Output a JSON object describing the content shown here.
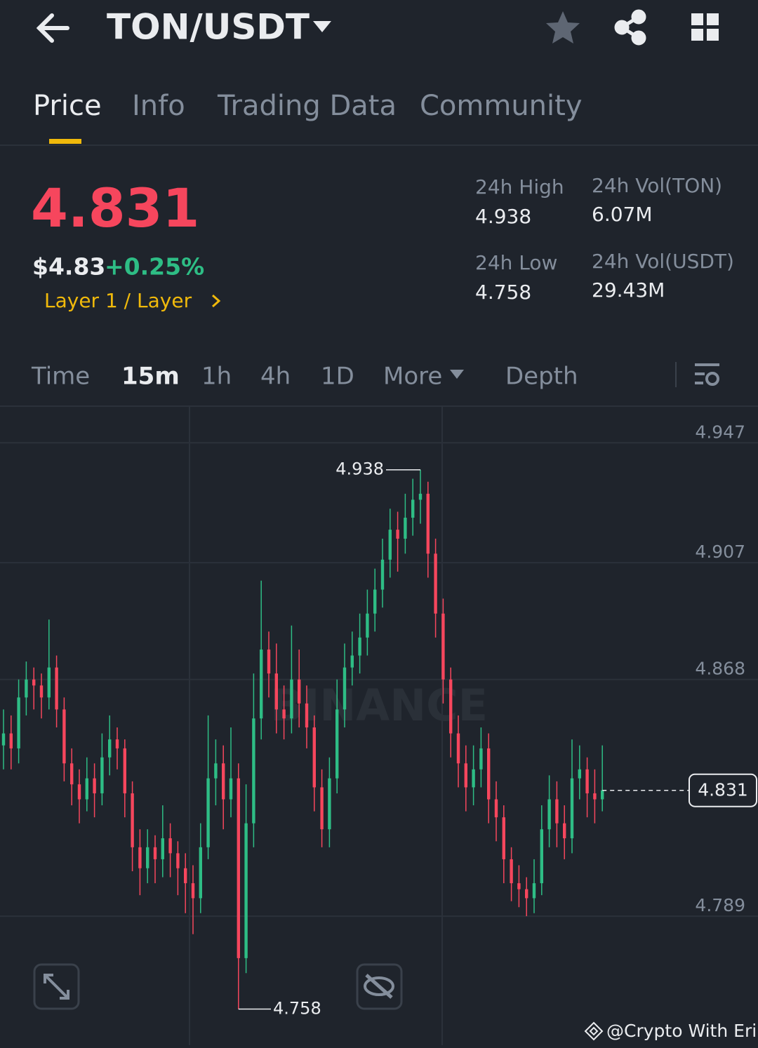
{
  "header": {
    "pair": "TON/USDT"
  },
  "tabs": [
    "Price",
    "Info",
    "Trading Data",
    "Community"
  ],
  "price": {
    "last": "4.831",
    "usd": "$4.83",
    "change": "+0.25%",
    "category": "Layer 1 / Layer"
  },
  "stats": [
    {
      "label": "24h High",
      "value": "4.938"
    },
    {
      "label": "24h Vol(TON)",
      "value": "6.07M"
    },
    {
      "label": "24h Low",
      "value": "4.758"
    },
    {
      "label": "24h Vol(USDT)",
      "value": "29.43M"
    }
  ],
  "intervals": [
    "Time",
    "15m",
    "1h",
    "4h",
    "1D",
    "More",
    "Depth"
  ],
  "chart": {
    "type": "candlestick",
    "watermark": "BINANCE",
    "ylim": [
      4.745,
      4.959
    ],
    "yticks": [
      4.947,
      4.907,
      4.868,
      4.789
    ],
    "up_color": "#2ebd85",
    "down_color": "#f6465d",
    "high_marker": 4.938,
    "low_marker": 4.758,
    "last_price": 4.831,
    "candles": [
      [
        4.846,
        4.858,
        4.838,
        4.85
      ],
      [
        4.85,
        4.856,
        4.838,
        4.845
      ],
      [
        4.845,
        4.868,
        4.84,
        4.862
      ],
      [
        4.862,
        4.874,
        4.856,
        4.868
      ],
      [
        4.868,
        4.872,
        4.858,
        4.866
      ],
      [
        4.866,
        4.87,
        4.855,
        4.862
      ],
      [
        4.862,
        4.888,
        4.858,
        4.872
      ],
      [
        4.872,
        4.876,
        4.852,
        4.858
      ],
      [
        4.858,
        4.862,
        4.834,
        4.84
      ],
      [
        4.84,
        4.845,
        4.826,
        4.833
      ],
      [
        4.833,
        4.838,
        4.82,
        4.828
      ],
      [
        4.828,
        4.842,
        4.824,
        4.835
      ],
      [
        4.835,
        4.84,
        4.822,
        4.83
      ],
      [
        4.83,
        4.85,
        4.826,
        4.842
      ],
      [
        4.842,
        4.856,
        4.836,
        4.848
      ],
      [
        4.848,
        4.852,
        4.838,
        4.845
      ],
      [
        4.845,
        4.848,
        4.822,
        4.83
      ],
      [
        4.83,
        4.834,
        4.804,
        4.812
      ],
      [
        4.812,
        4.818,
        4.796,
        4.805
      ],
      [
        4.805,
        4.818,
        4.8,
        4.812
      ],
      [
        4.812,
        4.816,
        4.8,
        4.808
      ],
      [
        4.808,
        4.826,
        4.802,
        4.815
      ],
      [
        4.815,
        4.82,
        4.802,
        4.81
      ],
      [
        4.81,
        4.814,
        4.796,
        4.805
      ],
      [
        4.805,
        4.81,
        4.79,
        4.8
      ],
      [
        4.8,
        4.806,
        4.783,
        4.795
      ],
      [
        4.795,
        4.82,
        4.79,
        4.812
      ],
      [
        4.812,
        4.856,
        4.808,
        4.835
      ],
      [
        4.835,
        4.848,
        4.826,
        4.84
      ],
      [
        4.84,
        4.846,
        4.818,
        4.828
      ],
      [
        4.828,
        4.852,
        4.822,
        4.835
      ],
      [
        4.835,
        4.84,
        4.758,
        4.775
      ],
      [
        4.775,
        4.833,
        4.77,
        4.82
      ],
      [
        4.82,
        4.87,
        4.812,
        4.855
      ],
      [
        4.855,
        4.901,
        4.848,
        4.878
      ],
      [
        4.878,
        4.884,
        4.862,
        4.87
      ],
      [
        4.87,
        4.88,
        4.85,
        4.858
      ],
      [
        4.858,
        4.866,
        4.848,
        4.855
      ],
      [
        4.855,
        4.886,
        4.85,
        4.868
      ],
      [
        4.868,
        4.878,
        4.852,
        4.86
      ],
      [
        4.86,
        4.866,
        4.845,
        4.852
      ],
      [
        4.852,
        4.856,
        4.824,
        4.832
      ],
      [
        4.832,
        4.838,
        4.812,
        4.818
      ],
      [
        4.818,
        4.842,
        4.812,
        4.835
      ],
      [
        4.835,
        4.868,
        4.83,
        4.858
      ],
      [
        4.858,
        4.88,
        4.852,
        4.872
      ],
      [
        4.872,
        4.884,
        4.866,
        4.876
      ],
      [
        4.876,
        4.89,
        4.87,
        4.882
      ],
      [
        4.882,
        4.898,
        4.876,
        4.89
      ],
      [
        4.89,
        4.905,
        4.884,
        4.898
      ],
      [
        4.898,
        4.915,
        4.892,
        4.908
      ],
      [
        4.908,
        4.925,
        4.902,
        4.918
      ],
      [
        4.918,
        4.924,
        4.904,
        4.915
      ],
      [
        4.915,
        4.93,
        4.91,
        4.922
      ],
      [
        4.922,
        4.935,
        4.916,
        4.928
      ],
      [
        4.928,
        4.938,
        4.92,
        4.93
      ],
      [
        4.93,
        4.934,
        4.902,
        4.91
      ],
      [
        4.91,
        4.915,
        4.882,
        4.89
      ],
      [
        4.89,
        4.895,
        4.86,
        4.868
      ],
      [
        4.868,
        4.872,
        4.842,
        4.85
      ],
      [
        4.85,
        4.856,
        4.832,
        4.84
      ],
      [
        4.84,
        4.846,
        4.824,
        4.832
      ],
      [
        4.832,
        4.846,
        4.826,
        4.838
      ],
      [
        4.838,
        4.852,
        4.832,
        4.845
      ],
      [
        4.845,
        4.85,
        4.82,
        4.828
      ],
      [
        4.828,
        4.834,
        4.814,
        4.822
      ],
      [
        4.822,
        4.826,
        4.8,
        4.808
      ],
      [
        4.808,
        4.812,
        4.794,
        4.8
      ],
      [
        4.8,
        4.806,
        4.792,
        4.798
      ],
      [
        4.798,
        4.802,
        4.789,
        4.795
      ],
      [
        4.795,
        4.808,
        4.79,
        4.8
      ],
      [
        4.8,
        4.826,
        4.796,
        4.818
      ],
      [
        4.818,
        4.836,
        4.812,
        4.828
      ],
      [
        4.828,
        4.834,
        4.812,
        4.82
      ],
      [
        4.82,
        4.826,
        4.808,
        4.815
      ],
      [
        4.815,
        4.848,
        4.81,
        4.835
      ],
      [
        4.835,
        4.846,
        4.828,
        4.838
      ],
      [
        4.838,
        4.842,
        4.822,
        4.83
      ],
      [
        4.83,
        4.838,
        4.82,
        4.828
      ],
      [
        4.828,
        4.846,
        4.824,
        4.831
      ]
    ]
  },
  "watermark_credit": "@Crypto With Erik"
}
